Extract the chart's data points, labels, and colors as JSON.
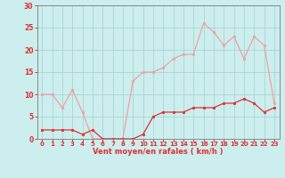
{
  "x": [
    0,
    1,
    2,
    3,
    4,
    5,
    6,
    7,
    8,
    9,
    10,
    11,
    12,
    13,
    14,
    15,
    16,
    17,
    18,
    19,
    20,
    21,
    22,
    23
  ],
  "vent_moyen": [
    2,
    2,
    2,
    2,
    1,
    2,
    0,
    0,
    0,
    0,
    1,
    5,
    6,
    6,
    6,
    7,
    7,
    7,
    8,
    8,
    9,
    8,
    6,
    7
  ],
  "rafales": [
    10,
    10,
    7,
    11,
    6,
    0,
    0,
    0,
    0,
    13,
    15,
    15,
    16,
    18,
    19,
    19,
    26,
    24,
    21,
    23,
    18,
    23,
    21,
    8
  ],
  "color_moyen": "#e03030",
  "color_rafales": "#f0a0a0",
  "bg_color": "#cceeee",
  "grid_color": "#aad4d4",
  "xlabel": "Vent moyen/en rafales ( km/h )",
  "ylim": [
    0,
    30
  ],
  "xlim": [
    -0.5,
    23.5
  ],
  "yticks": [
    0,
    5,
    10,
    15,
    20,
    25,
    30
  ],
  "xticks": [
    0,
    1,
    2,
    3,
    4,
    5,
    6,
    7,
    8,
    9,
    10,
    11,
    12,
    13,
    14,
    15,
    16,
    17,
    18,
    19,
    20,
    21,
    22,
    23
  ]
}
